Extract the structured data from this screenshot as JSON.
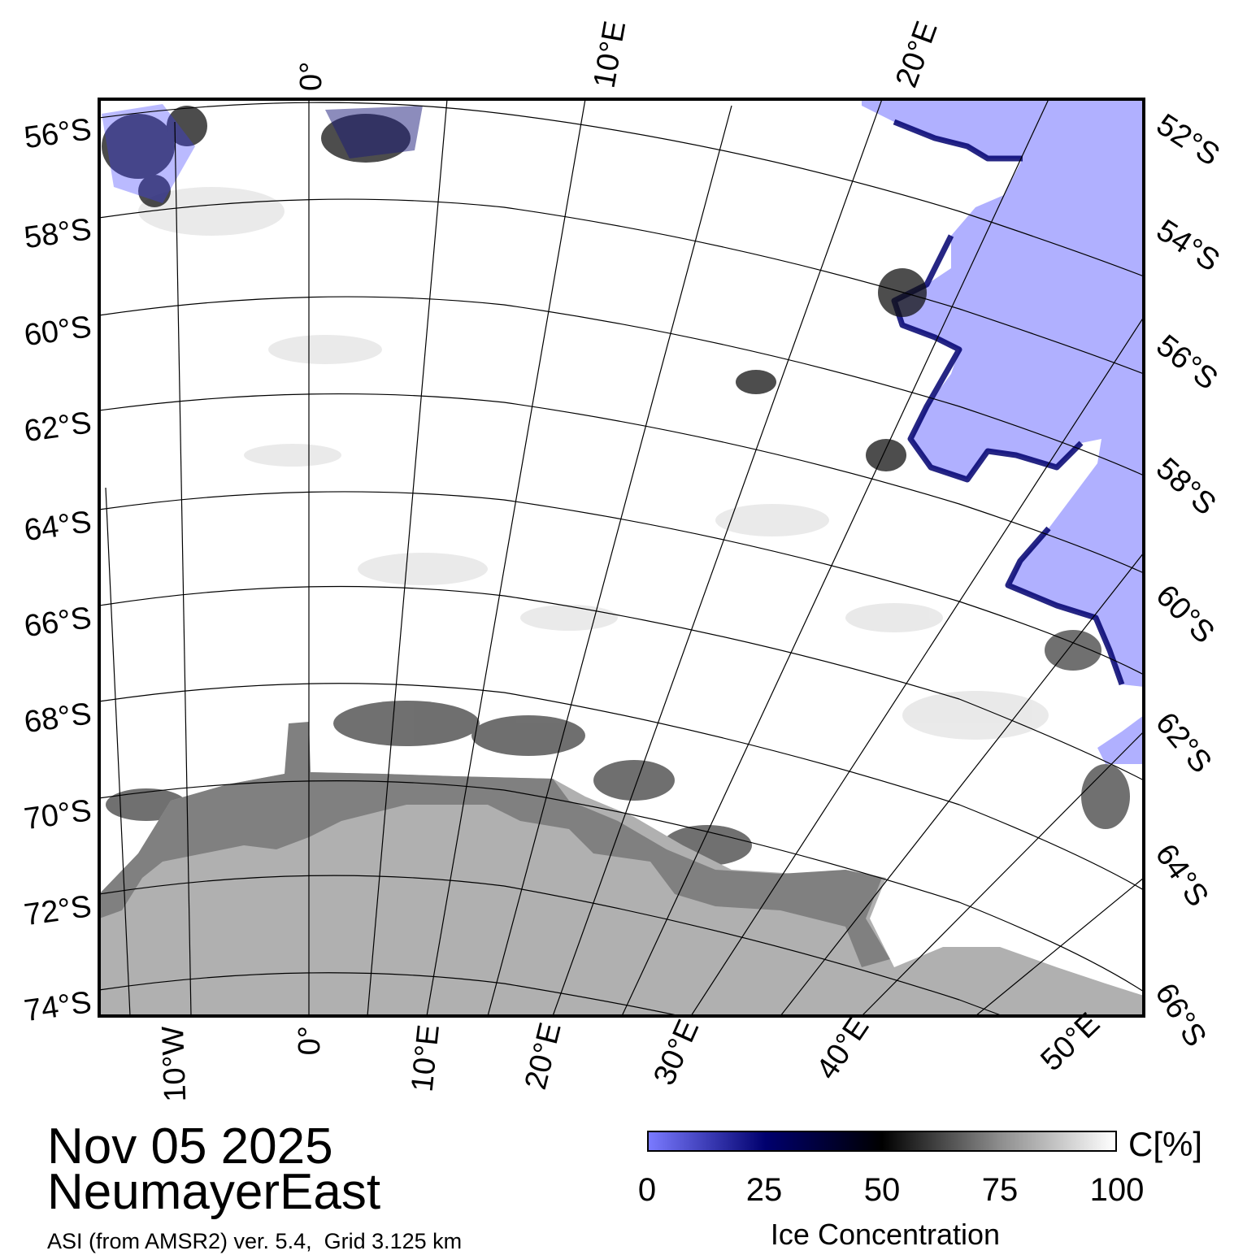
{
  "title": {
    "date": "Nov 05 2025",
    "region": "NeumayerEast",
    "source": "ASI (from AMSR2) ver. 5.4,  Grid 3.125 km"
  },
  "map": {
    "type": "sea ice concentration map",
    "colors": {
      "open_water": "#b0b0ff",
      "land": "#b0b0b0",
      "ice_shelf": "#808080",
      "sea_ice_full": "#ffffff",
      "low_concentration_edge": "#00006e"
    },
    "latitude_labels_left": [
      "56°S",
      "58°S",
      "60°S",
      "62°S",
      "64°S",
      "66°S",
      "68°S",
      "70°S",
      "72°S",
      "74°S"
    ],
    "latitude_labels_right": [
      "52°S",
      "54°S",
      "56°S",
      "58°S",
      "60°S",
      "62°S",
      "64°S",
      "66°S"
    ],
    "longitude_labels_top": [
      "0°",
      "10°E",
      "20°E"
    ],
    "longitude_labels_bottom": [
      "10°W",
      "0°",
      "10°E",
      "20°E",
      "30°E",
      "40°E",
      "50°E"
    ]
  },
  "colorbar": {
    "unit": "C[%]",
    "label": "Ice Concentration",
    "ticks": [
      "0",
      "25",
      "50",
      "75",
      "100"
    ],
    "colors": [
      "#7a7aff",
      "#00006e",
      "#000000",
      "#8c8c8c",
      "#ffffff"
    ]
  }
}
